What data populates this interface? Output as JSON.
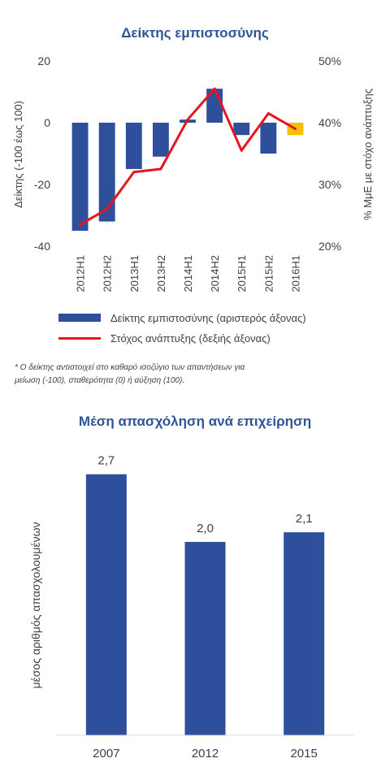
{
  "chart_data": [
    {
      "type": "bar+line",
      "title": "Δείκτης εμπιστοσύνης",
      "categories": [
        "2012H1",
        "2012H2",
        "2013H1",
        "2013H2",
        "2014H1",
        "2014H2",
        "2015H1",
        "2015H2",
        "2016H1"
      ],
      "series": [
        {
          "name": "Δείκτης εμπιστοσύνης (αριστερός άξονας)",
          "type": "bar",
          "axis": "left",
          "values": [
            -35,
            -32,
            -15,
            -11,
            1,
            11,
            -4,
            -10,
            -4
          ],
          "colors": [
            "#2e4f9c",
            "#2e4f9c",
            "#2e4f9c",
            "#2e4f9c",
            "#2e4f9c",
            "#2e4f9c",
            "#2e4f9c",
            "#2e4f9c",
            "#f5c000"
          ]
        },
        {
          "name": "Στόχος ανάπτυξης (δεξιής άξονας)",
          "type": "line",
          "axis": "right",
          "values": [
            23.5,
            26,
            32,
            32.5,
            40.5,
            45.5,
            35.5,
            41.5,
            39
          ],
          "color": "#e8141b"
        }
      ],
      "ylabel": "Δείκτης (-100 έως 100)",
      "y2label": "% ΜμΕ με στόχο ανάπτυξης",
      "ylim": [
        -40,
        20
      ],
      "yticks": [
        "20",
        "0",
        "-20",
        "-40"
      ],
      "ytick_values": [
        20,
        0,
        -20,
        -40
      ],
      "y2lim": [
        20,
        50
      ],
      "y2ticks": [
        "50%",
        "40%",
        "30%",
        "20%"
      ],
      "y2tick_values": [
        50,
        40,
        30,
        20
      ],
      "grid": false,
      "legend": "bottom",
      "note": "* Ο δείκτης αντιστοιχεί στο καθαρό ισοζύγιο των απαντήσεων για μείωση (-100), σταθερότητα (0) ή αύξηση (100).",
      "note_lines": [
        "* Ο δείκτης αντιστοιχεί στο καθαρό ισοζύγιο των απαντήσεων για",
        "μείωση (-100), σταθερότητα (0) ή αύξηση (100)."
      ]
    },
    {
      "type": "bar",
      "title": "Μέση απασχόληση ανά επιχείρηση",
      "categories": [
        "2007",
        "2012",
        "2015"
      ],
      "values": [
        2.7,
        2.0,
        2.1
      ],
      "value_labels": [
        "2,7",
        "2,0",
        "2,1"
      ],
      "color": "#2e4f9c",
      "ylabel": "μέσος αριθμός απασχολουμένων",
      "ylim": [
        0,
        3.0
      ],
      "grid": false,
      "legend": "none"
    }
  ]
}
